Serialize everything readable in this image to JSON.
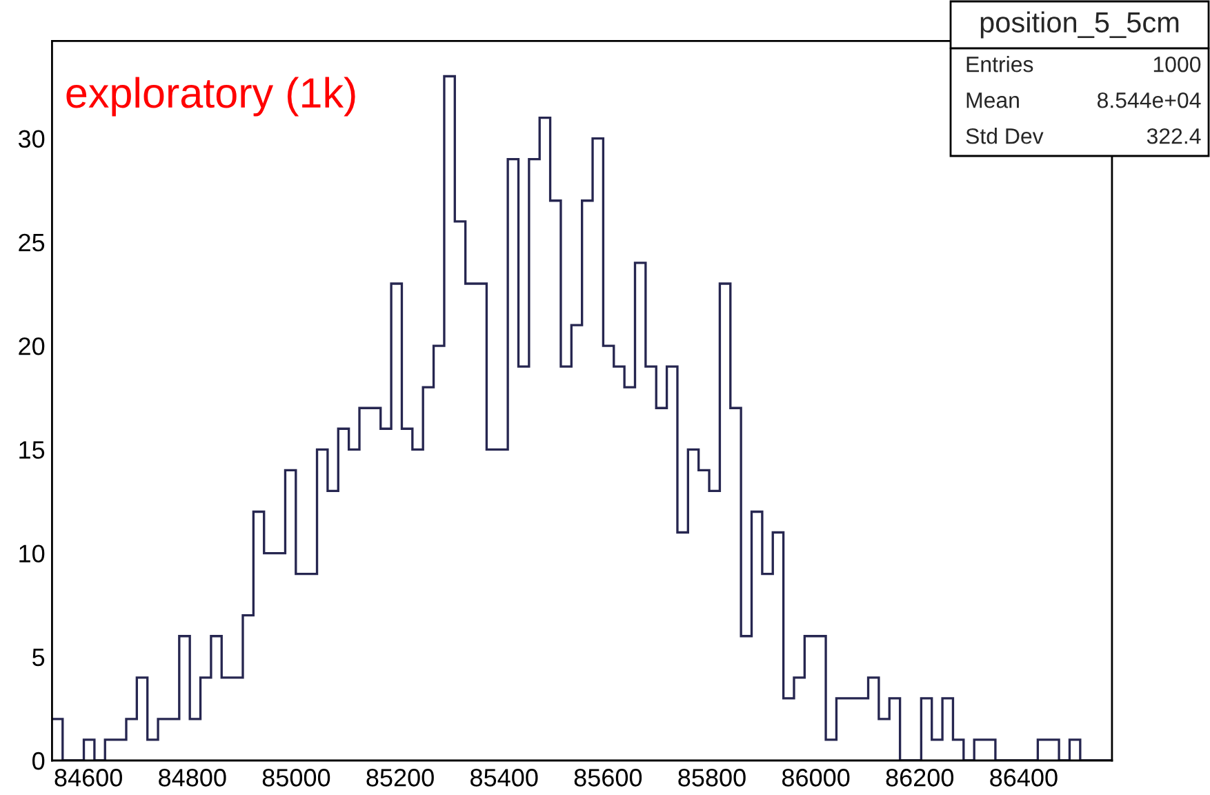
{
  "chart_data": {
    "type": "histogram",
    "title": "position_5_5cm",
    "bins": [
      84530,
      84550.4,
      84570.8,
      84591.2,
      84611.6,
      84632,
      84652.4,
      84672.8,
      84693.2,
      84713.6,
      84734,
      84754.4,
      84774.8,
      84795.2,
      84815.6,
      84836,
      84856.4,
      84876.8,
      84897.2,
      84917.6,
      84938,
      84958.4,
      84978.8,
      84999.2,
      85019.6,
      85040,
      85060.4,
      85080.8,
      85101.2,
      85121.6,
      85142,
      85162.4,
      85182.8,
      85203.2,
      85223.6,
      85244,
      85264.4,
      85284.8,
      85305.2,
      85325.6,
      85346,
      85366.4,
      85386.8,
      85407.2,
      85427.6,
      85448,
      85468.4,
      85488.8,
      85509.2,
      85529.6,
      85550,
      85570.4,
      85590.8,
      85611.2,
      85631.6,
      85652,
      85672.4,
      85692.8,
      85713.2,
      85733.6,
      85754,
      85774.4,
      85794.8,
      85815.2,
      85835.6,
      85856,
      85876.4,
      85896.8,
      85917.2,
      85937.6,
      85958,
      85978.4,
      85998.8,
      86019.2,
      86039.6,
      86060,
      86080.4,
      86100.8,
      86121.2,
      86141.6,
      86162,
      86182.4,
      86202.8,
      86223.2,
      86243.6,
      86264,
      86284.4,
      86304.8,
      86325.2,
      86345.6,
      86366,
      86386.4,
      86406.8,
      86427.2,
      86447.6,
      86468,
      86488.4,
      86508.8,
      86529.2,
      86549.6,
      86570
    ],
    "values": [
      2,
      0,
      0,
      1,
      0,
      1,
      1,
      2,
      4,
      1,
      2,
      2,
      6,
      2,
      4,
      6,
      4,
      4,
      7,
      12,
      10,
      10,
      14,
      9,
      9,
      15,
      13,
      16,
      15,
      17,
      17,
      16,
      23,
      16,
      15,
      18,
      20,
      33,
      26,
      23,
      23,
      15,
      15,
      29,
      19,
      29,
      31,
      27,
      19,
      21,
      27,
      30,
      20,
      19,
      18,
      24,
      19,
      17,
      19,
      11,
      15,
      14,
      13,
      23,
      17,
      6,
      12,
      9,
      11,
      3,
      4,
      6,
      6,
      1,
      3,
      3,
      3,
      4,
      2,
      3,
      0,
      0,
      3,
      1,
      3,
      1,
      0,
      1,
      1,
      0,
      0,
      0,
      0,
      1,
      1,
      0,
      1,
      0,
      0,
      0
    ],
    "color": "#262650",
    "xlim": [
      84530,
      86570
    ],
    "xticks": [
      84600,
      84800,
      85000,
      85200,
      85400,
      85600,
      85800,
      86000,
      86200,
      86400
    ],
    "ylim": [
      0,
      34.7
    ],
    "yticks": [
      0,
      5,
      10,
      15,
      20,
      25,
      30
    ],
    "grid": false,
    "annotations": [
      "exploratory (1k)",
      "Entries",
      "1000",
      "Mean",
      "8.544e+04",
      "Std Dev",
      "322.4"
    ]
  }
}
